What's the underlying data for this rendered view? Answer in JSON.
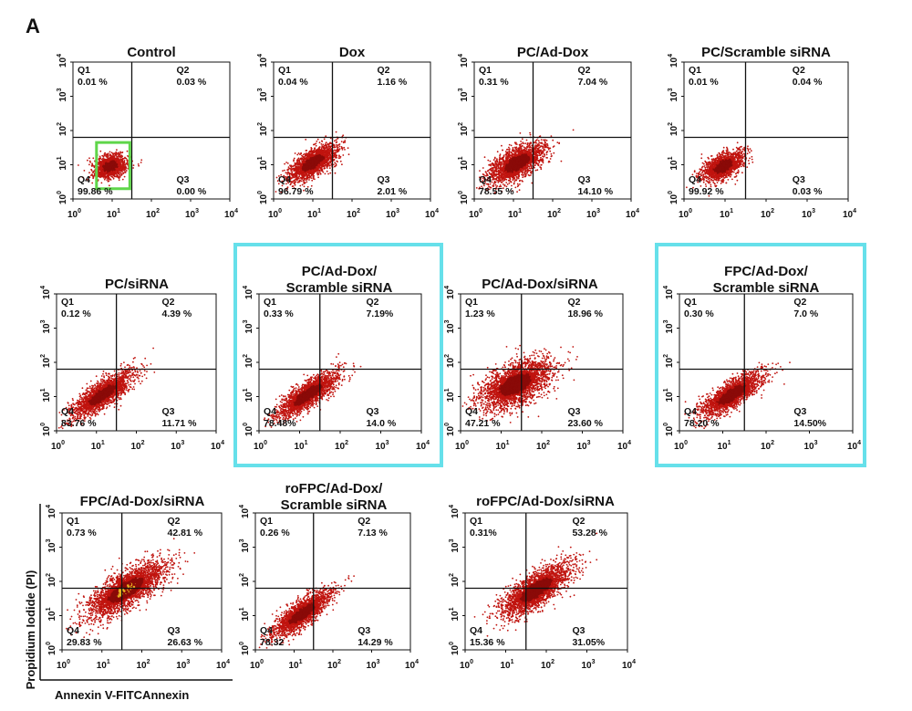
{
  "figure": {
    "panel_letter": "A",
    "x_axis_label": "Annexin V-FITCAnnexin",
    "y_axis_label": "Propidium Iodide (PI)",
    "tick_base": "10",
    "tick_exponents": [
      "0",
      "1",
      "2",
      "3",
      "4"
    ],
    "colors": {
      "dots": "#c0140f",
      "dots_dense": "#8a0a08",
      "dots_hot": "#e8b020",
      "highlight_green": "#5fd64a",
      "highlight_cyan": "#66e0ea",
      "axis": "#111111"
    }
  },
  "chart_data": [
    {
      "type": "scatter",
      "title": "Control",
      "gate": [
        1.5,
        1.8
      ],
      "quadrants": {
        "Q1": "0.01 %",
        "Q2": "0.03 %",
        "Q3": "0.00 %",
        "Q4": "99.86 %"
      },
      "population": {
        "cx": 0.95,
        "cy": 0.95,
        "sd_major": 0.22,
        "sd_minor": 0.16,
        "corr": 0.55,
        "n": 1300
      },
      "highlight": "green"
    },
    {
      "type": "scatter",
      "title": "Dox",
      "gate": [
        1.5,
        1.8
      ],
      "quadrants": {
        "Q1": "0.04 %",
        "Q2": "1.16 %",
        "Q3": "2.01 %",
        "Q4": "96.79 %"
      },
      "population": {
        "cx": 1.0,
        "cy": 1.05,
        "sd_major": 0.38,
        "sd_minor": 0.16,
        "corr": 0.8,
        "n": 1900
      }
    },
    {
      "type": "scatter",
      "title": "PC/Ad-Dox",
      "gate": [
        1.5,
        1.8
      ],
      "quadrants": {
        "Q1": "0.31 %",
        "Q2": "7.04 %",
        "Q3": "14.10 %",
        "Q4": "78.55 %"
      },
      "population": {
        "cx": 1.1,
        "cy": 1.05,
        "sd_major": 0.42,
        "sd_minor": 0.2,
        "corr": 0.75,
        "n": 2000
      }
    },
    {
      "type": "scatter",
      "title": "PC/Scramble siRNA",
      "gate": [
        1.5,
        1.8
      ],
      "quadrants": {
        "Q1": "0.01 %",
        "Q2": "0.04 %",
        "Q3": "0.03 %",
        "Q4": "99.92 %"
      },
      "population": {
        "cx": 0.95,
        "cy": 0.95,
        "sd_major": 0.3,
        "sd_minor": 0.16,
        "corr": 0.75,
        "n": 1500
      }
    },
    {
      "type": "scatter",
      "title": "PC/siRNA",
      "gate": [
        1.5,
        1.8
      ],
      "quadrants": {
        "Q1": "0.12 %",
        "Q2": "4.39 %",
        "Q3": "11.71 %",
        "Q4": "83.76 %"
      },
      "population": {
        "cx": 1.15,
        "cy": 1.05,
        "sd_major": 0.48,
        "sd_minor": 0.16,
        "corr": 0.85,
        "n": 2000
      }
    },
    {
      "type": "scatter",
      "title": "PC/Ad-Dox/",
      "title2": "Scramble siRNA",
      "gate": [
        1.5,
        1.8
      ],
      "quadrants": {
        "Q1": "0.33 %",
        "Q2": "7.19%",
        "Q3": "14.0 %",
        "Q4": "78.48%"
      },
      "population": {
        "cx": 1.2,
        "cy": 1.05,
        "sd_major": 0.48,
        "sd_minor": 0.15,
        "corr": 0.86,
        "n": 2000
      },
      "highlight": "cyan"
    },
    {
      "type": "scatter",
      "title": "PC/Ad-Dox/siRNA",
      "gate": [
        1.5,
        1.8
      ],
      "quadrants": {
        "Q1": "1.23 %",
        "Q2": "18.96 %",
        "Q3": "23.60 %",
        "Q4": "47.21 %"
      },
      "population": {
        "cx": 1.35,
        "cy": 1.35,
        "sd_major": 0.5,
        "sd_minor": 0.26,
        "corr": 0.7,
        "n": 2600
      }
    },
    {
      "type": "scatter",
      "title": "FPC/Ad-Dox/",
      "title2": "Scramble siRNA",
      "gate": [
        1.5,
        1.8
      ],
      "quadrants": {
        "Q1": "0.30 %",
        "Q2": "7.0 %",
        "Q3": "14.50%",
        "Q4": "78.20 %"
      },
      "population": {
        "cx": 1.2,
        "cy": 1.05,
        "sd_major": 0.46,
        "sd_minor": 0.16,
        "corr": 0.86,
        "n": 2000
      },
      "highlight": "cyan"
    },
    {
      "type": "scatter",
      "title": "FPC/Ad-Dox/siRNA",
      "gate": [
        1.5,
        1.8
      ],
      "quadrants": {
        "Q1": "0.73 %",
        "Q2": "42.81 %",
        "Q3": "26.63 %",
        "Q4": "29.83 %"
      },
      "population": {
        "cx": 1.6,
        "cy": 1.75,
        "sd_major": 0.6,
        "sd_minor": 0.22,
        "corr": 0.78,
        "n": 2600
      },
      "hot_spot": true,
      "show_axis_labels": true
    },
    {
      "type": "scatter",
      "title": "roFPC/Ad-Dox/",
      "title2": "Scramble siRNA",
      "gate": [
        1.5,
        1.8
      ],
      "quadrants": {
        "Q1": "0.26 %",
        "Q2": "7.13 %",
        "Q3": "14.29 %",
        "Q4": "78.32"
      },
      "population": {
        "cx": 1.2,
        "cy": 1.05,
        "sd_major": 0.48,
        "sd_minor": 0.15,
        "corr": 0.86,
        "n": 2000
      }
    },
    {
      "type": "scatter",
      "title": "roFPC/Ad-Dox/siRNA",
      "gate": [
        1.5,
        1.8
      ],
      "quadrants": {
        "Q1": "0.31%",
        "Q2": "53.28 %",
        "Q3": "31.05%",
        "Q4": "15.36 %"
      },
      "population": {
        "cx": 1.75,
        "cy": 1.75,
        "sd_major": 0.55,
        "sd_minor": 0.2,
        "corr": 0.86,
        "n": 2400
      }
    }
  ]
}
